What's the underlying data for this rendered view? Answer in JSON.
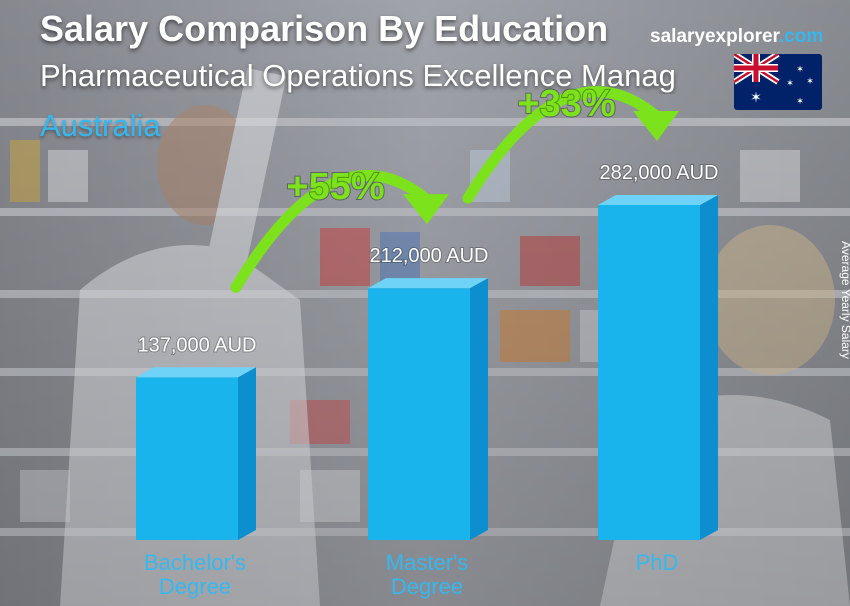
{
  "header": {
    "title": "Salary Comparison By Education",
    "subtitle": "Pharmaceutical Operations Excellence Manag",
    "country": "Australia"
  },
  "brand": {
    "part1": "salary",
    "part2": "explorer",
    "part3": ".com"
  },
  "flag_icon": "australia-flag-icon",
  "colors": {
    "bar_front": "#1ab4ec",
    "bar_side": "#0d8fcf",
    "bar_top": "#6fd3f7",
    "accent": "#35b8f0",
    "arrow": "#7be21c"
  },
  "chart_data": {
    "type": "bar",
    "categories": [
      "Bachelor's\nDegree",
      "Master's\nDegree",
      "PhD"
    ],
    "values": [
      137000,
      212000,
      282000
    ],
    "value_labels": [
      "137,000 AUD",
      "212,000 AUD",
      "282,000 AUD"
    ],
    "ylabel": "Average Yearly Salary",
    "ylim": [
      0,
      282000
    ],
    "annotations": [
      "+55%",
      "+33%"
    ]
  }
}
